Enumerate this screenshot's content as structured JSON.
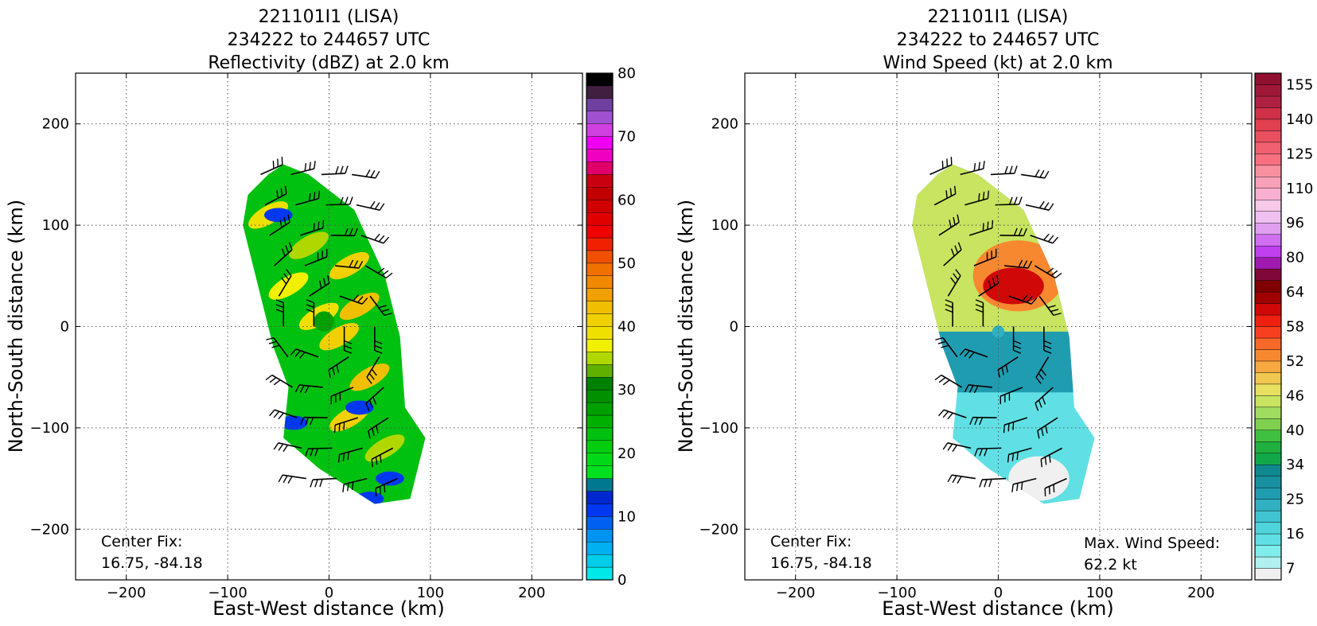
{
  "figure": {
    "colors": {
      "background": "#ffffff",
      "grid": "#555555",
      "frame": "#000000"
    }
  },
  "chart_data": [
    {
      "type": "heatmap",
      "variable": "reflectivity",
      "title_lines": [
        "221101I1 (LISA)",
        "234222 to 244657 UTC",
        "Reflectivity (dBZ) at 2.0 km"
      ],
      "xlabel": "East-West distance (km)",
      "ylabel": "North-South distance (km)",
      "xlim": [
        -250,
        250
      ],
      "ylim": [
        -250,
        250
      ],
      "xticks": [
        -200,
        -100,
        0,
        100,
        200
      ],
      "yticks": [
        -200,
        -100,
        0,
        100,
        200
      ],
      "tick_labels_x": [
        "−200",
        "−100",
        "0",
        "100",
        "200"
      ],
      "tick_labels_y": [
        "−200",
        "−100",
        "0",
        "100",
        "200"
      ],
      "grid": true,
      "annotations": [
        {
          "lines": [
            "Center Fix:",
            "16.75, -84.18"
          ],
          "position": "bottom-left"
        }
      ],
      "colorbar": {
        "min": 0,
        "max": 80,
        "tick_values": [
          0,
          10,
          20,
          30,
          40,
          50,
          60,
          70,
          80
        ],
        "tick_labels": [
          "0",
          "10",
          "20",
          "30",
          "40",
          "50",
          "60",
          "70",
          "80"
        ],
        "colors": [
          "#00e8e8",
          "#00cce8",
          "#00b0f0",
          "#0094f0",
          "#0060f0",
          "#0038f0",
          "#0028d0",
          "#007890",
          "#00e020",
          "#00d818",
          "#00cc10",
          "#00c010",
          "#00b000",
          "#00a000",
          "#009000",
          "#008000",
          "#60b000",
          "#b0d800",
          "#f0f000",
          "#f0e000",
          "#f0d000",
          "#f0c000",
          "#f0a000",
          "#f08800",
          "#f07000",
          "#f05000",
          "#f02000",
          "#f00000",
          "#e00000",
          "#d00000",
          "#c00000",
          "#c80010",
          "#e0006a",
          "#f000c0",
          "#f000f0",
          "#d040e0",
          "#a050d0",
          "#7040a0",
          "#402040",
          "#000000"
        ]
      },
      "field": {
        "description_free": true,
        "eye_position": [
          -5,
          5
        ]
      }
    },
    {
      "type": "heatmap",
      "variable": "wind_speed",
      "title_lines": [
        "221101I1 (LISA)",
        "234222 to 244657 UTC",
        "Wind Speed (kt) at 2.0 km"
      ],
      "xlabel": "East-West distance (km)",
      "ylabel": "North-South distance (km)",
      "xlim": [
        -250,
        250
      ],
      "ylim": [
        -250,
        250
      ],
      "xticks": [
        -200,
        -100,
        0,
        100,
        200
      ],
      "yticks": [
        -200,
        -100,
        0,
        100,
        200
      ],
      "tick_labels_x": [
        "−200",
        "−100",
        "0",
        "100",
        "200"
      ],
      "tick_labels_y": [
        "−200",
        "−100",
        "0",
        "100",
        "200"
      ],
      "grid": true,
      "annotations": [
        {
          "lines": [
            "Center Fix:",
            "16.75, -84.18"
          ],
          "position": "bottom-left"
        },
        {
          "lines": [
            "Max. Wind Speed:",
            "62.2 kt"
          ],
          "position": "bottom-right"
        }
      ],
      "max_wind_speed_kt": 62.2,
      "colorbar": {
        "tick_labels": [
          "7",
          "16",
          "25",
          "34",
          "40",
          "46",
          "52",
          "58",
          "64",
          "80",
          "96",
          "110",
          "125",
          "140",
          "155"
        ],
        "tick_index_positions": [
          0.5,
          3.5,
          6.5,
          9.5,
          12.5,
          15.5,
          18.5,
          21.5,
          24.5,
          27.5,
          30.5,
          33.5,
          36.5,
          39.5,
          42.5
        ],
        "colors": [
          "#f0f0f0",
          "#b0f0f0",
          "#80ecec",
          "#60e0e4",
          "#50d4dc",
          "#40c4d0",
          "#30b0c0",
          "#209cb0",
          "#1890a0",
          "#108890",
          "#10a848",
          "#20b040",
          "#40c040",
          "#80d050",
          "#a0dc60",
          "#c8e460",
          "#e8e060",
          "#f0c850",
          "#f8a840",
          "#f88830",
          "#f86828",
          "#f84020",
          "#f02010",
          "#d00808",
          "#a00000",
          "#800000",
          "#800838",
          "#a01ab0",
          "#c040f0",
          "#d070f0",
          "#e0a0f0",
          "#f0c0f0",
          "#f8c8e8",
          "#f8b0d0",
          "#f8a0b8",
          "#f890a0",
          "#f87080",
          "#f06070",
          "#e85060",
          "#e04050",
          "#d03048",
          "#b02040",
          "#a01838",
          "#901030"
        ]
      },
      "field": {
        "description_free": true,
        "eye_position": [
          0,
          -5
        ]
      }
    }
  ]
}
